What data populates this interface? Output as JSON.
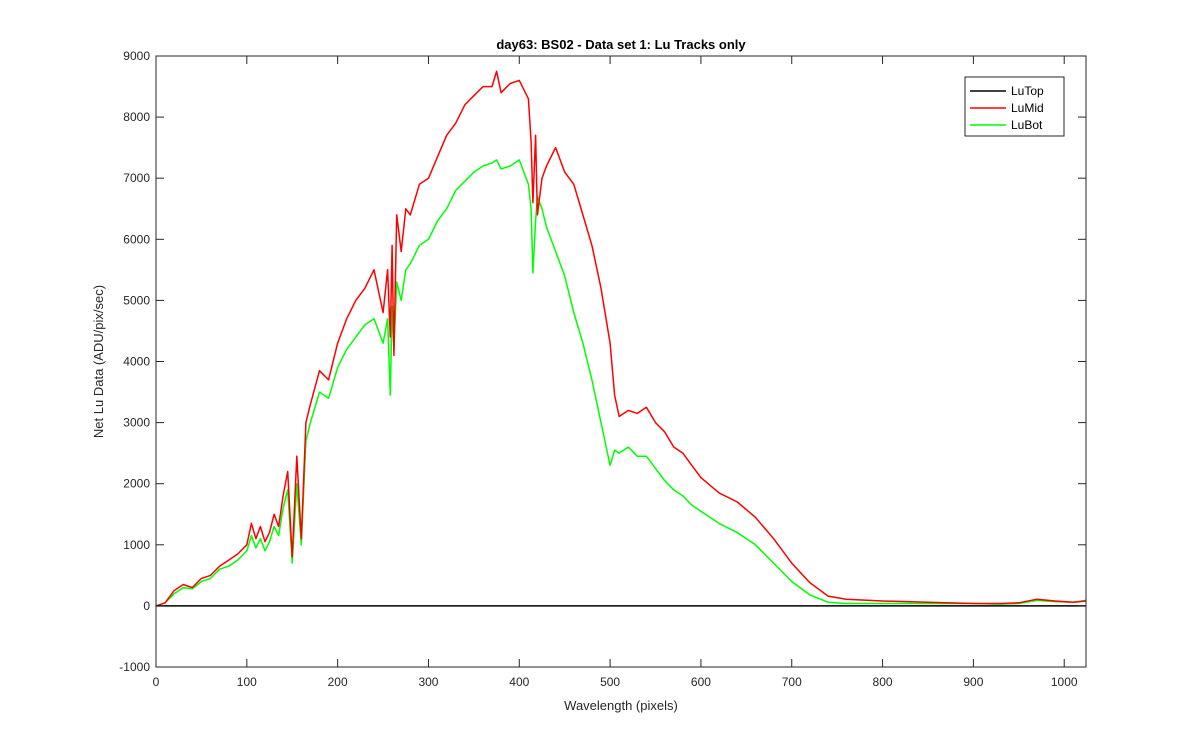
{
  "chart_data": {
    "type": "line",
    "title": "day63: BS02 - Data set 1: Lu Tracks only",
    "xlabel": "Wavelength (pixels)",
    "ylabel": "Net Lu Data (ADU/pix/sec)",
    "xlim": [
      0,
      1024
    ],
    "ylim": [
      -1000,
      9000
    ],
    "xticks": [
      0,
      100,
      200,
      300,
      400,
      500,
      600,
      700,
      800,
      900,
      1000
    ],
    "yticks": [
      -1000,
      0,
      1000,
      2000,
      3000,
      4000,
      5000,
      6000,
      7000,
      8000,
      9000
    ],
    "grid": false,
    "legend_position": "top-right",
    "colors": {
      "LuTop": "#000000",
      "LuMid": "#ff0000",
      "LuBot": "#00ff00"
    },
    "x": [
      0,
      10,
      20,
      30,
      40,
      50,
      60,
      70,
      80,
      90,
      100,
      105,
      110,
      115,
      120,
      125,
      130,
      135,
      140,
      145,
      150,
      155,
      160,
      165,
      170,
      180,
      190,
      200,
      210,
      220,
      230,
      240,
      250,
      255,
      258,
      260,
      262,
      265,
      270,
      275,
      280,
      290,
      300,
      310,
      320,
      330,
      340,
      350,
      360,
      370,
      375,
      380,
      390,
      400,
      405,
      410,
      413,
      415,
      418,
      420,
      425,
      430,
      440,
      450,
      460,
      470,
      480,
      490,
      500,
      505,
      510,
      520,
      530,
      540,
      550,
      560,
      570,
      580,
      590,
      600,
      620,
      640,
      660,
      680,
      700,
      720,
      740,
      760,
      800,
      850,
      900,
      930,
      950,
      970,
      990,
      1010,
      1024
    ],
    "series": [
      {
        "name": "LuTop",
        "values": [
          0,
          0,
          0,
          0,
          0,
          0,
          0,
          0,
          0,
          0,
          0,
          0,
          0,
          0,
          0,
          0,
          0,
          0,
          0,
          0,
          0,
          0,
          0,
          0,
          0,
          0,
          0,
          0,
          0,
          0,
          0,
          0,
          0,
          0,
          0,
          0,
          0,
          0,
          0,
          0,
          0,
          0,
          0,
          0,
          0,
          0,
          0,
          0,
          0,
          0,
          0,
          0,
          0,
          0,
          0,
          0,
          0,
          0,
          0,
          0,
          0,
          0,
          0,
          0,
          0,
          0,
          0,
          0,
          0,
          0,
          0,
          0,
          0,
          0,
          0,
          0,
          0,
          0,
          0,
          0,
          0,
          0,
          0,
          0,
          0,
          0,
          0,
          0,
          0,
          0,
          0,
          0,
          0,
          0,
          0,
          0,
          0
        ]
      },
      {
        "name": "LuMid",
        "values": [
          0,
          50,
          250,
          350,
          300,
          450,
          500,
          650,
          750,
          850,
          1000,
          1350,
          1100,
          1300,
          1050,
          1200,
          1500,
          1300,
          1800,
          2200,
          800,
          2450,
          1100,
          3000,
          3300,
          3850,
          3700,
          4300,
          4700,
          5000,
          5200,
          5500,
          4800,
          5500,
          4400,
          5900,
          4100,
          6400,
          5800,
          6500,
          6400,
          6900,
          7000,
          7350,
          7700,
          7900,
          8200,
          8350,
          8500,
          8500,
          8750,
          8400,
          8550,
          8600,
          8450,
          8300,
          7600,
          6600,
          7700,
          6400,
          7000,
          7200,
          7500,
          7100,
          6900,
          6400,
          5900,
          5200,
          4300,
          3450,
          3100,
          3200,
          3150,
          3250,
          3000,
          2850,
          2600,
          2500,
          2300,
          2100,
          1850,
          1700,
          1450,
          1100,
          700,
          380,
          160,
          110,
          80,
          60,
          40,
          40,
          50,
          110,
          80,
          60,
          80
        ]
      },
      {
        "name": "LuBot",
        "values": [
          0,
          50,
          200,
          300,
          280,
          400,
          450,
          600,
          650,
          750,
          900,
          1150,
          950,
          1100,
          900,
          1050,
          1300,
          1150,
          1600,
          1900,
          700,
          2000,
          1000,
          2700,
          3000,
          3500,
          3400,
          3900,
          4200,
          4400,
          4600,
          4700,
          4300,
          4700,
          3450,
          4900,
          4200,
          5300,
          5000,
          5500,
          5600,
          5900,
          6000,
          6300,
          6500,
          6800,
          6950,
          7100,
          7200,
          7250,
          7300,
          7150,
          7200,
          7300,
          7100,
          6900,
          6500,
          5450,
          6300,
          6700,
          6500,
          6200,
          5800,
          5400,
          4800,
          4300,
          3700,
          3000,
          2300,
          2550,
          2500,
          2600,
          2450,
          2450,
          2250,
          2050,
          1900,
          1800,
          1650,
          1550,
          1350,
          1200,
          1000,
          700,
          400,
          180,
          60,
          40,
          40,
          40,
          40,
          30,
          40,
          90,
          70,
          60,
          90
        ]
      }
    ]
  }
}
